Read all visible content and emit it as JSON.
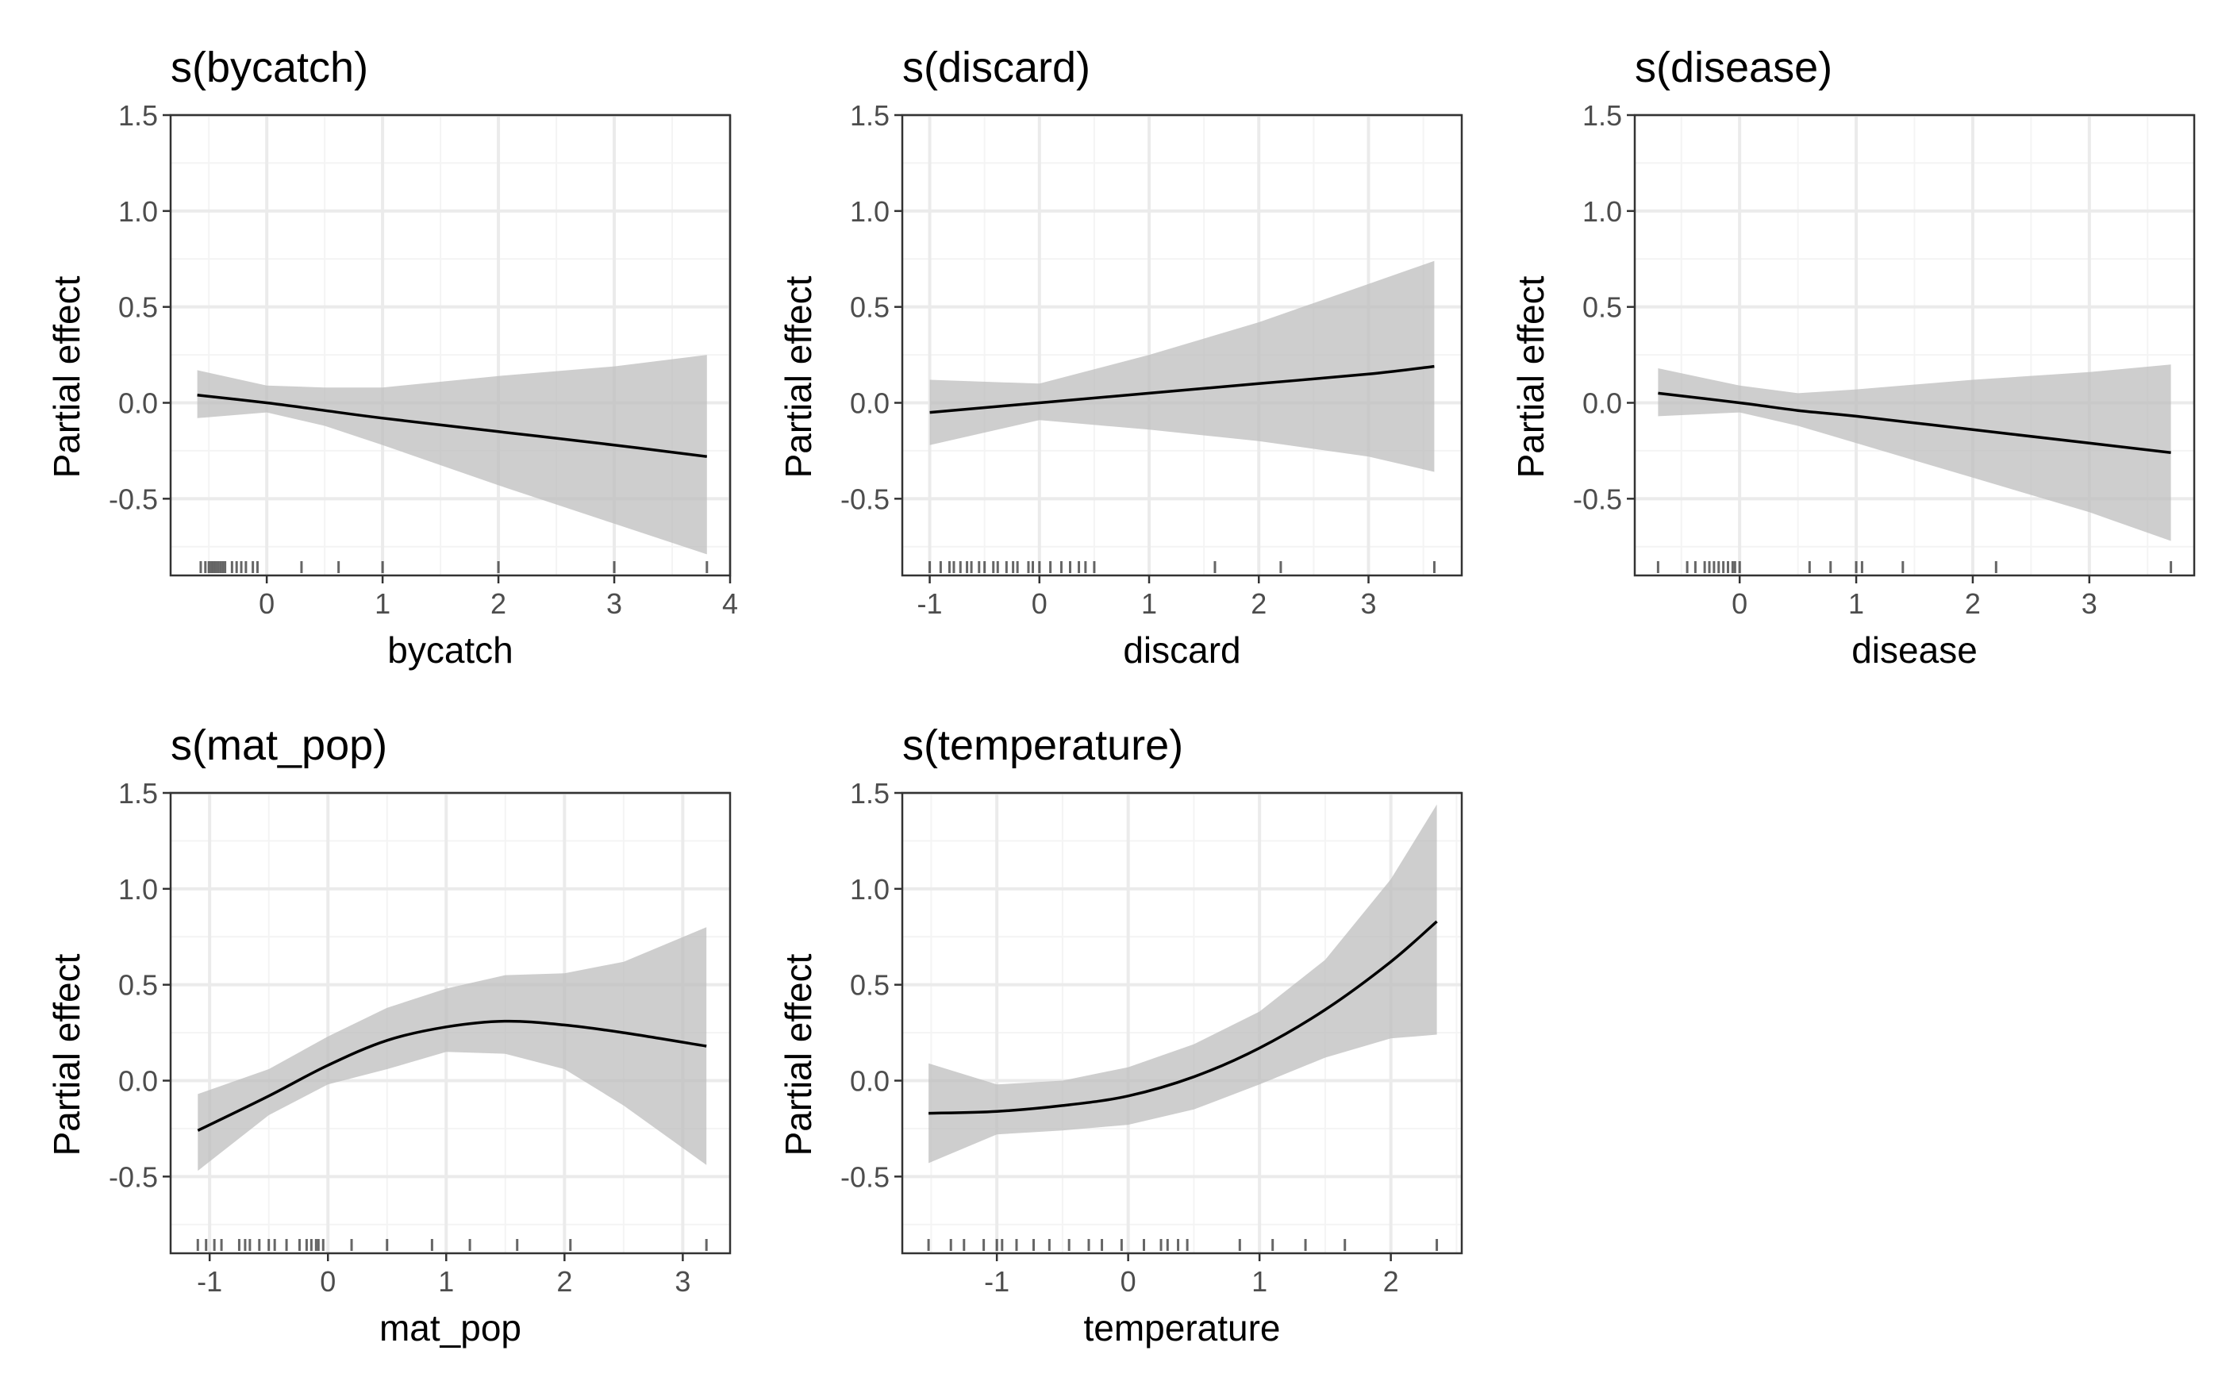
{
  "chart_data": [
    {
      "type": "line",
      "title": "s(bycatch)",
      "xlabel": "bycatch",
      "ylabel": "Partial effect",
      "xlim": [
        -0.83,
        4.0
      ],
      "ylim": [
        -0.9,
        1.5
      ],
      "x_ticks": [
        0,
        1,
        2,
        3,
        4
      ],
      "y_ticks": [
        -0.5,
        0.0,
        0.5,
        1.0,
        1.5
      ],
      "y_tick_labels": [
        "-0.5",
        "0.0",
        "0.5",
        "1.0",
        "1.5"
      ],
      "grid": true,
      "series": [
        {
          "x": [
            -0.6,
            0.0,
            0.5,
            1.0,
            2.0,
            3.0,
            3.8
          ],
          "y": [
            0.04,
            0.0,
            -0.04,
            -0.08,
            -0.15,
            -0.22,
            -0.28
          ],
          "lower": [
            -0.08,
            -0.05,
            -0.12,
            -0.22,
            -0.43,
            -0.63,
            -0.79
          ],
          "upper": [
            0.17,
            0.09,
            0.08,
            0.08,
            0.14,
            0.19,
            0.25
          ]
        }
      ],
      "rug": [
        -0.57,
        -0.53,
        -0.5,
        -0.48,
        -0.46,
        -0.44,
        -0.42,
        -0.4,
        -0.38,
        -0.36,
        -0.3,
        -0.26,
        -0.22,
        -0.18,
        -0.12,
        -0.08,
        0.3,
        0.62,
        1.0,
        2.0,
        3.0,
        3.8
      ]
    },
    {
      "type": "line",
      "title": "s(discard)",
      "xlabel": "discard",
      "ylabel": "Partial effect",
      "xlim": [
        -1.25,
        3.85
      ],
      "ylim": [
        -0.9,
        1.5
      ],
      "x_ticks": [
        -1,
        0,
        1,
        2,
        3
      ],
      "y_ticks": [
        -0.5,
        0.0,
        0.5,
        1.0,
        1.5
      ],
      "y_tick_labels": [
        "-0.5",
        "0.0",
        "0.5",
        "1.0",
        "1.5"
      ],
      "grid": true,
      "series": [
        {
          "x": [
            -1.0,
            0.0,
            1.0,
            2.0,
            3.0,
            3.6
          ],
          "y": [
            -0.05,
            0.0,
            0.05,
            0.1,
            0.15,
            0.19
          ],
          "lower": [
            -0.22,
            -0.09,
            -0.14,
            -0.2,
            -0.28,
            -0.36
          ],
          "upper": [
            0.12,
            0.1,
            0.25,
            0.42,
            0.62,
            0.74
          ]
        }
      ],
      "rug": [
        -1.0,
        -0.9,
        -0.82,
        -0.78,
        -0.72,
        -0.66,
        -0.62,
        -0.55,
        -0.5,
        -0.42,
        -0.38,
        -0.3,
        -0.24,
        -0.2,
        -0.1,
        -0.06,
        0.0,
        0.1,
        0.2,
        0.28,
        0.36,
        0.42,
        0.5,
        1.6,
        2.2,
        3.6
      ]
    },
    {
      "type": "line",
      "title": "s(disease)",
      "xlabel": "disease",
      "ylabel": "Partial effect",
      "xlim": [
        -0.9,
        3.9
      ],
      "ylim": [
        -0.9,
        1.5
      ],
      "x_ticks": [
        0,
        1,
        2,
        3
      ],
      "y_ticks": [
        -0.5,
        0.0,
        0.5,
        1.0,
        1.5
      ],
      "y_tick_labels": [
        "-0.5",
        "0.0",
        "0.5",
        "1.0",
        "1.5"
      ],
      "grid": true,
      "series": [
        {
          "x": [
            -0.7,
            0.0,
            0.5,
            1.0,
            2.0,
            3.0,
            3.7
          ],
          "y": [
            0.05,
            0.0,
            -0.04,
            -0.07,
            -0.14,
            -0.21,
            -0.26
          ],
          "lower": [
            -0.07,
            -0.05,
            -0.12,
            -0.21,
            -0.39,
            -0.57,
            -0.72
          ],
          "upper": [
            0.18,
            0.09,
            0.05,
            0.07,
            0.12,
            0.16,
            0.2
          ]
        }
      ],
      "rug": [
        -0.7,
        -0.45,
        -0.38,
        -0.3,
        -0.26,
        -0.22,
        -0.18,
        -0.14,
        -0.1,
        -0.06,
        -0.04,
        0.0,
        0.6,
        0.78,
        1.0,
        1.05,
        1.4,
        2.2,
        3.7
      ]
    },
    {
      "type": "line",
      "title": "s(mat_pop)",
      "xlabel": "mat_pop",
      "ylabel": "Partial effect",
      "xlim": [
        -1.33,
        3.4
      ],
      "ylim": [
        -0.9,
        1.5
      ],
      "x_ticks": [
        -1,
        0,
        1,
        2,
        3
      ],
      "y_ticks": [
        -0.5,
        0.0,
        0.5,
        1.0,
        1.5
      ],
      "y_tick_labels": [
        "-0.5",
        "0.0",
        "0.5",
        "1.0",
        "1.5"
      ],
      "grid": true,
      "series": [
        {
          "x": [
            -1.1,
            -0.5,
            0.0,
            0.5,
            1.0,
            1.5,
            2.0,
            2.5,
            3.2
          ],
          "y": [
            -0.26,
            -0.08,
            0.08,
            0.21,
            0.28,
            0.31,
            0.29,
            0.25,
            0.18
          ],
          "lower": [
            -0.47,
            -0.18,
            -0.02,
            0.06,
            0.15,
            0.14,
            0.06,
            -0.13,
            -0.44
          ],
          "upper": [
            -0.07,
            0.06,
            0.23,
            0.38,
            0.48,
            0.55,
            0.56,
            0.62,
            0.8
          ]
        }
      ],
      "rug": [
        -1.1,
        -1.03,
        -0.96,
        -0.9,
        -0.75,
        -0.7,
        -0.66,
        -0.58,
        -0.5,
        -0.45,
        -0.35,
        -0.24,
        -0.18,
        -0.14,
        -0.1,
        -0.08,
        -0.04,
        0.2,
        0.5,
        0.88,
        1.2,
        1.6,
        2.05,
        3.2
      ]
    },
    {
      "type": "line",
      "title": "s(temperature)",
      "xlabel": "temperature",
      "ylabel": "Partial effect",
      "xlim": [
        -1.72,
        2.54
      ],
      "ylim": [
        -0.9,
        1.5
      ],
      "x_ticks": [
        -1,
        0,
        1,
        2
      ],
      "y_ticks": [
        -0.5,
        0.0,
        0.5,
        1.0,
        1.5
      ],
      "y_tick_labels": [
        "-0.5",
        "0.0",
        "0.5",
        "1.0",
        "1.5"
      ],
      "grid": true,
      "series": [
        {
          "x": [
            -1.52,
            -1.0,
            -0.5,
            0.0,
            0.5,
            1.0,
            1.5,
            2.0,
            2.35
          ],
          "y": [
            -0.17,
            -0.16,
            -0.13,
            -0.08,
            0.02,
            0.17,
            0.37,
            0.62,
            0.83
          ],
          "lower": [
            -0.43,
            -0.28,
            -0.26,
            -0.23,
            -0.15,
            -0.02,
            0.12,
            0.22,
            0.24
          ],
          "upper": [
            0.09,
            -0.02,
            0.0,
            0.07,
            0.19,
            0.36,
            0.63,
            1.05,
            1.44
          ]
        }
      ],
      "rug": [
        -1.52,
        -1.35,
        -1.25,
        -1.1,
        -1.0,
        -0.96,
        -0.85,
        -0.72,
        -0.6,
        -0.45,
        -0.3,
        -0.2,
        -0.05,
        0.12,
        0.25,
        0.3,
        0.38,
        0.45,
        0.85,
        1.1,
        1.35,
        1.65,
        2.35
      ]
    }
  ]
}
